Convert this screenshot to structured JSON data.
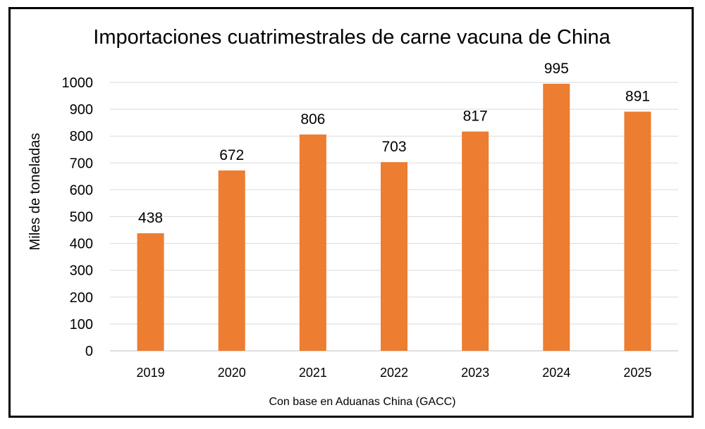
{
  "chart_data": {
    "type": "bar",
    "title": "Importaciones cuatrimestrales de carne vacuna de China",
    "xlabel": "Con base en Aduanas China (GACC)",
    "ylabel": "Miles de toneladas",
    "categories": [
      "2019",
      "2020",
      "2021",
      "2022",
      "2023",
      "2024",
      "2025"
    ],
    "values": [
      438,
      672,
      806,
      703,
      817,
      995,
      891
    ],
    "ylim": [
      0,
      1000
    ],
    "yticks": [
      0,
      100,
      200,
      300,
      400,
      500,
      600,
      700,
      800,
      900,
      1000
    ],
    "grid": true,
    "legend": "none",
    "bar_color": "#ED7D31"
  }
}
